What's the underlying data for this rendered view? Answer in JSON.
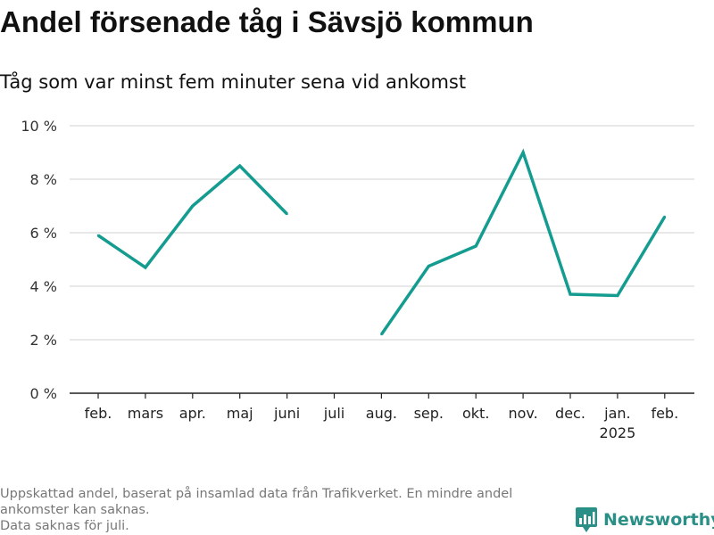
{
  "header": {
    "title": "Andel försenade tåg i Sävsjö kommun",
    "subtitle": "Tåg som var minst fem minuter sena vid ankomst"
  },
  "chart_data": {
    "type": "line",
    "title": "Andel försenade tåg i Sävsjö kommun",
    "subtitle": "Tåg som var minst fem minuter sena vid ankomst",
    "xlabel": "",
    "ylabel": "",
    "ylim": [
      0,
      10
    ],
    "y_ticks": [
      {
        "value": 0,
        "label": "0 %"
      },
      {
        "value": 2,
        "label": "2 %"
      },
      {
        "value": 4,
        "label": "4 %"
      },
      {
        "value": 6,
        "label": "6 %"
      },
      {
        "value": 8,
        "label": "8 %"
      },
      {
        "value": 10,
        "label": "10 %"
      }
    ],
    "categories": [
      "feb.",
      "mars",
      "apr.",
      "maj",
      "juni",
      "juli",
      "aug.",
      "sep.",
      "okt.",
      "nov.",
      "dec.",
      "jan.",
      "feb."
    ],
    "year_labels": [
      {
        "index": 11,
        "label": "2025"
      }
    ],
    "grid": true,
    "legend": "none",
    "series": [
      {
        "color": "#149c90",
        "values": [
          5.9,
          4.7,
          7.0,
          8.5,
          6.7,
          null,
          2.2,
          4.75,
          5.5,
          9.0,
          3.7,
          3.65,
          6.6
        ]
      }
    ]
  },
  "footer": {
    "note_lines": [
      "Uppskattad andel, baserat på insamlad data från Trafikverket. En mindre andel",
      "ankomster kan saknas.",
      "Data saknas för juli."
    ],
    "brand": "Newsworthy",
    "brand_icon": "newsworthy-logo-icon",
    "brand_color": "#2a8f86"
  }
}
